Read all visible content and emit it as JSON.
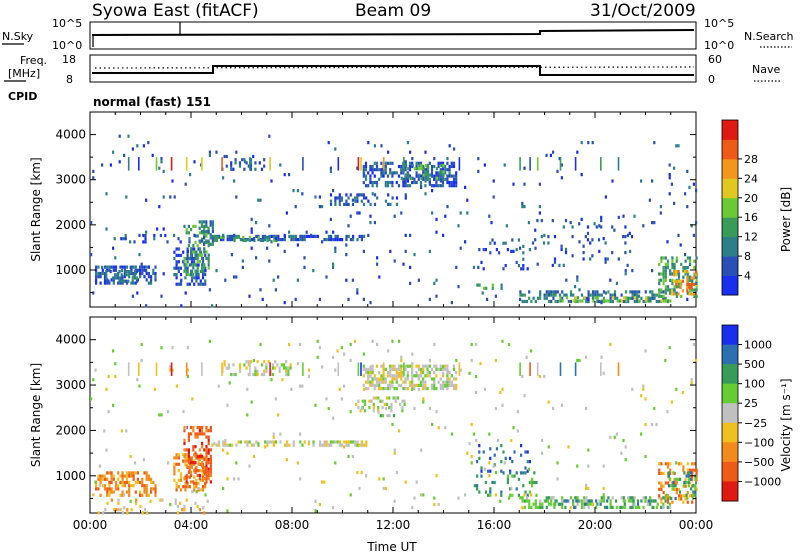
{
  "header": {
    "title": "Syowa East (fitACF)",
    "beam": "Beam 09",
    "date": "31/Oct/2009"
  },
  "nsky_panel": {
    "label": "N.Sky",
    "right_label": "N.Search",
    "tick_top": "10^5",
    "tick_bottom": "10^0",
    "right_tick_top": "10^5",
    "right_tick_bottom": "10^0"
  },
  "freq_panel": {
    "label_line1": "Freq.",
    "label_line2": "[MHz]",
    "right_label": "Nave",
    "tick_top": "18",
    "tick_bottom": "8",
    "right_tick_top": "60",
    "right_tick_bottom": "0"
  },
  "cpid": {
    "label": "CPID",
    "value": "normal (fast) 151"
  },
  "chart_data": [
    {
      "type": "heatmap",
      "panel": "power",
      "ylabel": "Slant Range [km]",
      "xlabel": "",
      "ylim": [
        180,
        4500
      ],
      "yticks": [
        "1000",
        "2000",
        "3000",
        "4000"
      ],
      "xticks": [
        "00:00",
        "04:00",
        "08:00",
        "12:00",
        "16:00",
        "20:00",
        "00:00"
      ],
      "colorbar": {
        "label": "Power [dB]",
        "ticks": [
          "4",
          "8",
          "12",
          "16",
          "20",
          "24",
          "28"
        ],
        "colors": [
          "#1a2eee",
          "#2a4fb5",
          "#2e7e8a",
          "#3a9a5a",
          "#6cc836",
          "#e0c820",
          "#f2961e",
          "#ee5b18",
          "#e01a12"
        ]
      },
      "regions": [
        {
          "t0": 0.2,
          "t1": 2.6,
          "r0": 700,
          "r1": 1100,
          "v": 1,
          "d": 0.55
        },
        {
          "t0": 0.6,
          "t1": 1.9,
          "r0": 750,
          "r1": 1000,
          "v": 2,
          "d": 0.5
        },
        {
          "t0": 3.3,
          "t1": 4.6,
          "r0": 700,
          "r1": 1500,
          "v": 1,
          "d": 0.5
        },
        {
          "t0": 3.7,
          "t1": 4.7,
          "r0": 900,
          "r1": 2000,
          "v": 3,
          "d": 0.4
        },
        {
          "t0": 4.3,
          "t1": 4.9,
          "r0": 1600,
          "r1": 2100,
          "v": 2,
          "d": 0.4
        },
        {
          "t0": 0.5,
          "t1": 4.0,
          "r0": 1650,
          "r1": 1800,
          "v": 1,
          "d": 0.2
        },
        {
          "t0": 4.8,
          "t1": 11.0,
          "r0": 1680,
          "r1": 1780,
          "v": 1,
          "d": 0.6
        },
        {
          "t0": 4.9,
          "t1": 7.5,
          "r0": 1660,
          "r1": 1760,
          "v": 3,
          "d": 0.3
        },
        {
          "t0": 5.2,
          "t1": 7.0,
          "r0": 3200,
          "r1": 3550,
          "v": 1,
          "d": 0.3
        },
        {
          "t0": 10.8,
          "t1": 14.5,
          "r0": 2900,
          "r1": 3400,
          "v": 1,
          "d": 0.55
        },
        {
          "t0": 12.3,
          "t1": 14.0,
          "r0": 3000,
          "r1": 3350,
          "v": 3,
          "d": 0.35
        },
        {
          "t0": 9.5,
          "t1": 12.5,
          "r0": 2450,
          "r1": 2700,
          "v": 1,
          "d": 0.35
        },
        {
          "t0": 15.2,
          "t1": 17.5,
          "r0": 1000,
          "r1": 1700,
          "v": 1,
          "d": 0.12
        },
        {
          "t0": 15.3,
          "t1": 16.3,
          "r0": 600,
          "r1": 700,
          "v": 3,
          "d": 0.5
        },
        {
          "t0": 17.0,
          "t1": 23.0,
          "r0": 300,
          "r1": 550,
          "v": 2,
          "d": 0.45
        },
        {
          "t0": 18.5,
          "t1": 23.0,
          "r0": 300,
          "r1": 420,
          "v": 4,
          "d": 0.35
        },
        {
          "t0": 17.5,
          "t1": 21.5,
          "r0": 1100,
          "r1": 2200,
          "v": 1,
          "d": 0.08
        },
        {
          "t0": 22.5,
          "t1": 24.0,
          "r0": 400,
          "r1": 1300,
          "v": 3,
          "d": 0.45
        },
        {
          "t0": 23.0,
          "t1": 24.0,
          "r0": 500,
          "r1": 1000,
          "v": 6,
          "d": 0.35
        },
        {
          "t0": 0.0,
          "t1": 24.0,
          "r0": 200,
          "r1": 4000,
          "v": 1,
          "d": 0.02
        }
      ],
      "stripes": [
        1.5,
        1.9,
        2.6,
        3.2,
        3.8,
        4.4,
        5.2,
        6.3,
        7.1,
        8.4,
        9.8,
        10.6,
        10.7,
        11.6,
        12.4,
        14.6,
        17.0,
        17.4,
        17.7,
        18.6,
        19.2,
        20.2,
        20.9
      ]
    },
    {
      "type": "heatmap",
      "panel": "velocity",
      "ylabel": "Slant Range [km]",
      "xlabel": "Time UT",
      "ylim": [
        180,
        4500
      ],
      "yticks": [
        "1000",
        "2000",
        "3000",
        "4000"
      ],
      "xticks": [
        "00:00",
        "04:00",
        "08:00",
        "12:00",
        "16:00",
        "20:00",
        "00:00"
      ],
      "colorbar": {
        "label": "Velocity [m s⁻¹]",
        "ticks": [
          "1000",
          "500",
          "100",
          "25",
          "−25",
          "−100",
          "−500",
          "−1000"
        ],
        "colors": [
          "#1a2eee",
          "#2e6fb0",
          "#3a9a5a",
          "#66cc33",
          "#c0c0c0",
          "#f0c020",
          "#f28a1c",
          "#ee5b18",
          "#e01a12"
        ]
      },
      "regions": [
        {
          "t0": 0.2,
          "t1": 2.6,
          "r0": 600,
          "r1": 1100,
          "v": 6,
          "d": 0.55
        },
        {
          "t0": 3.3,
          "t1": 4.6,
          "r0": 700,
          "r1": 1500,
          "v": 6,
          "d": 0.5
        },
        {
          "t0": 3.7,
          "t1": 4.8,
          "r0": 900,
          "r1": 2100,
          "v": 7,
          "d": 0.45
        },
        {
          "t0": 0.3,
          "t1": 4.5,
          "r0": 180,
          "r1": 500,
          "v": 5,
          "d": 0.12
        },
        {
          "t0": 4.8,
          "t1": 11.0,
          "r0": 1680,
          "r1": 1780,
          "v": 4,
          "d": 0.55
        },
        {
          "t0": 5.2,
          "t1": 8.0,
          "r0": 3200,
          "r1": 3550,
          "v": 4,
          "d": 0.3
        },
        {
          "t0": 10.8,
          "t1": 14.5,
          "r0": 2900,
          "r1": 3450,
          "v": 4,
          "d": 0.6
        },
        {
          "t0": 10.5,
          "t1": 12.5,
          "r0": 2400,
          "r1": 2750,
          "v": 4,
          "d": 0.35
        },
        {
          "t0": 11.3,
          "t1": 12.0,
          "r0": 2300,
          "r1": 2500,
          "v": 3,
          "d": 0.3
        },
        {
          "t0": 15.2,
          "t1": 17.5,
          "r0": 1100,
          "r1": 1700,
          "v": 1,
          "d": 0.1
        },
        {
          "t0": 15.2,
          "t1": 18.0,
          "r0": 600,
          "r1": 1100,
          "v": 2,
          "d": 0.22
        },
        {
          "t0": 17.0,
          "t1": 23.0,
          "r0": 300,
          "r1": 550,
          "v": 3,
          "d": 0.4
        },
        {
          "t0": 18.0,
          "t1": 22.5,
          "r0": 280,
          "r1": 480,
          "v": 2,
          "d": 0.25
        },
        {
          "t0": 22.5,
          "t1": 24.0,
          "r0": 400,
          "r1": 1300,
          "v": 6,
          "d": 0.4
        },
        {
          "t0": 22.8,
          "t1": 24.0,
          "r0": 500,
          "r1": 1100,
          "v": 2,
          "d": 0.25
        },
        {
          "t0": 0.0,
          "t1": 24.0,
          "r0": 200,
          "r1": 4000,
          "v": 4,
          "d": 0.02
        }
      ],
      "stripes": [
        1.5,
        1.9,
        2.6,
        3.2,
        3.8,
        4.4,
        5.2,
        6.3,
        7.1,
        8.4,
        9.8,
        10.6,
        10.7,
        11.6,
        12.4,
        14.6,
        17.0,
        17.4,
        17.7,
        18.6,
        19.2,
        20.2,
        20.9
      ]
    }
  ]
}
